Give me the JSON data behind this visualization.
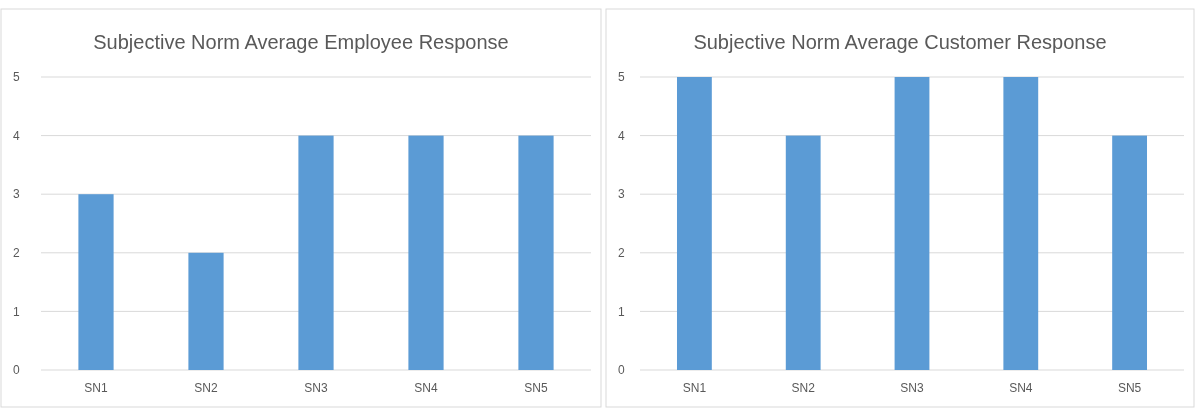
{
  "chart_data": [
    {
      "type": "bar",
      "title": "Subjective Norm Average Employee Response",
      "categories": [
        "SN1",
        "SN2",
        "SN3",
        "SN4",
        "SN5"
      ],
      "values": [
        3,
        2,
        4,
        4,
        4
      ],
      "color": "#5b9bd5",
      "ylim": [
        0,
        5
      ],
      "yticks": [
        0,
        1,
        2,
        3,
        4,
        5
      ],
      "grid": "y"
    },
    {
      "type": "bar",
      "title": "Subjective Norm Average Customer Response",
      "categories": [
        "SN1",
        "SN2",
        "SN3",
        "SN4",
        "SN5"
      ],
      "values": [
        5,
        4,
        5,
        5,
        4
      ],
      "color": "#5b9bd5",
      "ylim": [
        0,
        5
      ],
      "yticks": [
        0,
        1,
        2,
        3,
        4,
        5
      ],
      "grid": "y"
    }
  ]
}
